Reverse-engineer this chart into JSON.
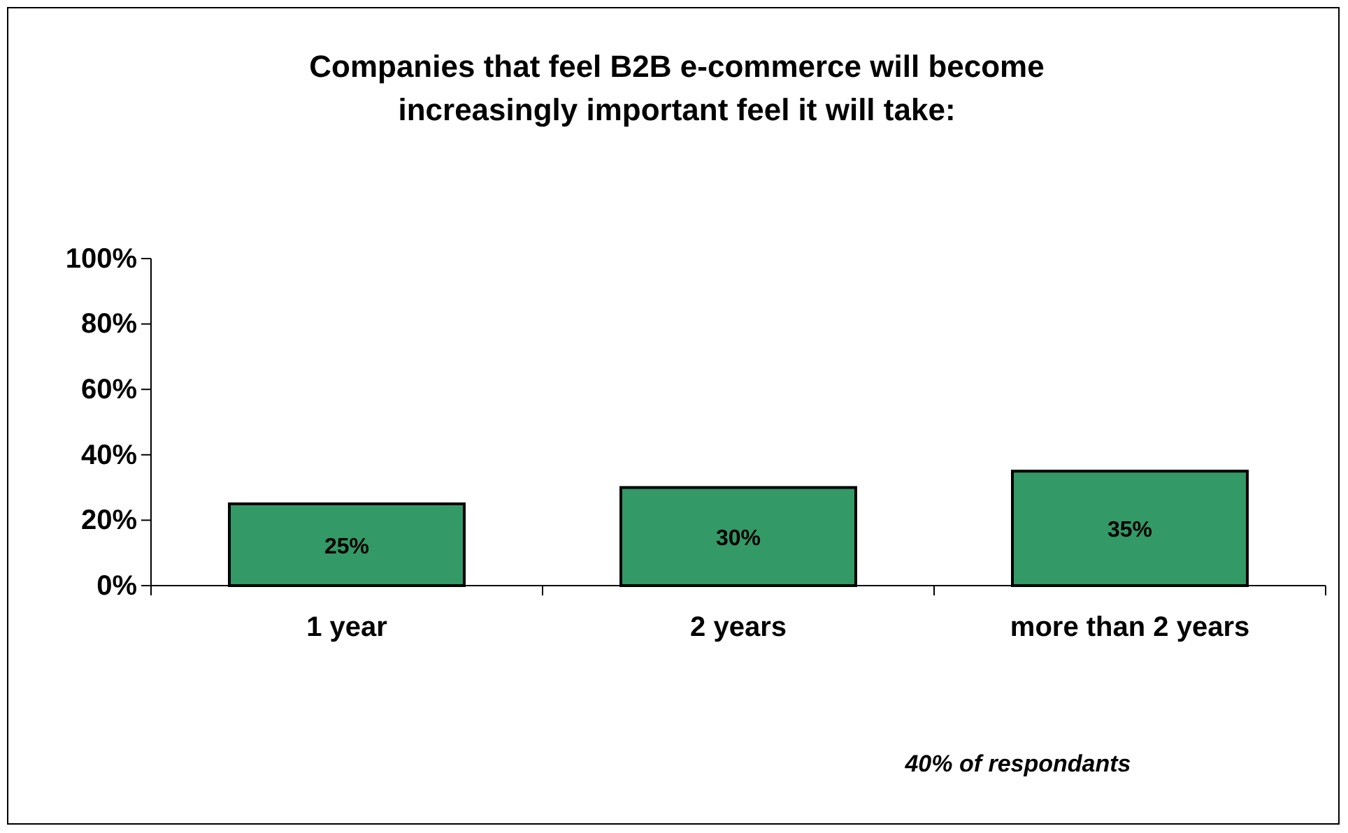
{
  "chart_data": {
    "type": "bar",
    "title": "Companies that feel B2B e-commerce will become increasingly important feel it will take:",
    "categories": [
      "1 year",
      "2 years",
      "more than 2 years"
    ],
    "values": [
      25,
      30,
      35
    ],
    "color": "#339966",
    "data_labels": true,
    "value_labels": [
      "25%",
      "30%",
      "35%"
    ],
    "ylim": [
      0,
      100
    ],
    "yticks": [
      {
        "value": 0,
        "label": "0%"
      },
      {
        "value": 20,
        "label": "20%"
      },
      {
        "value": 40,
        "label": "40%"
      },
      {
        "value": 60,
        "label": "60%"
      },
      {
        "value": 80,
        "label": "80%"
      },
      {
        "value": 100,
        "label": "100%"
      }
    ],
    "grid": false,
    "annotations": [
      "40% of respondants"
    ]
  }
}
